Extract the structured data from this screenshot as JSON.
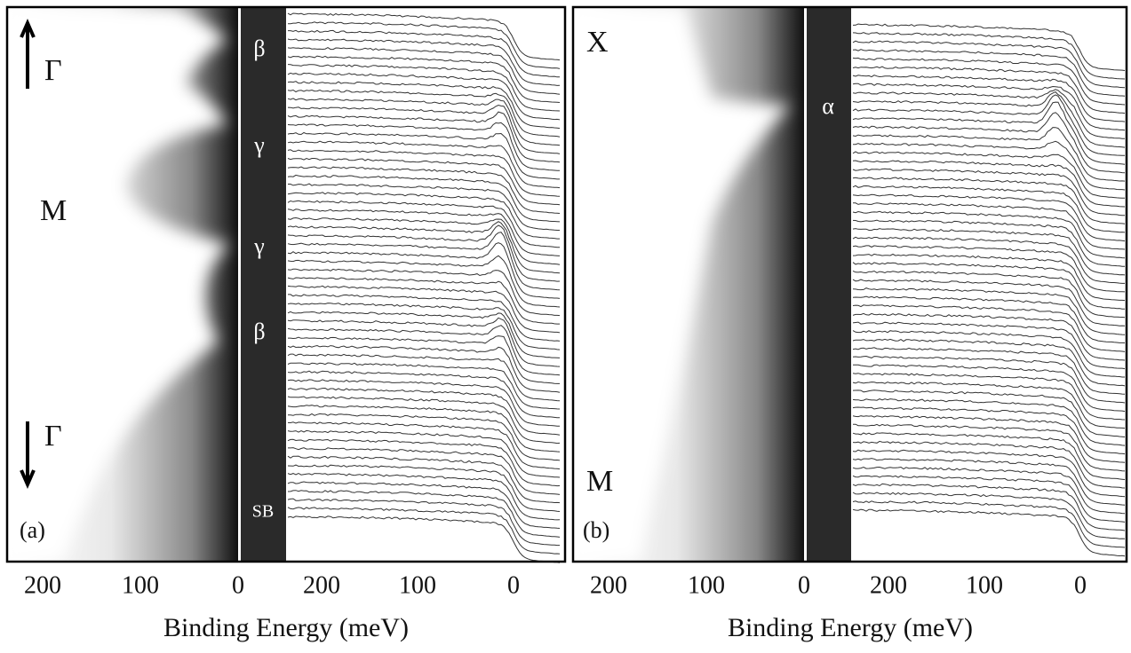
{
  "panels": [
    {
      "tag": "(a)",
      "side_labels": [
        "Γ",
        "M",
        "Γ"
      ],
      "band_labels": [
        "β",
        "γ",
        "γ",
        "β",
        "SB"
      ],
      "map_ticks": [
        200,
        100,
        0
      ],
      "edc_ticks": [
        200,
        100,
        0
      ],
      "xlabel": "Binding Energy (meV)"
    },
    {
      "tag": "(b)",
      "side_labels": [
        "X",
        "M"
      ],
      "band_labels": [
        "α"
      ],
      "map_ticks": [
        200,
        100,
        0
      ],
      "edc_ticks": [
        200,
        100,
        0
      ],
      "xlabel": "Binding Energy (meV)"
    }
  ]
}
